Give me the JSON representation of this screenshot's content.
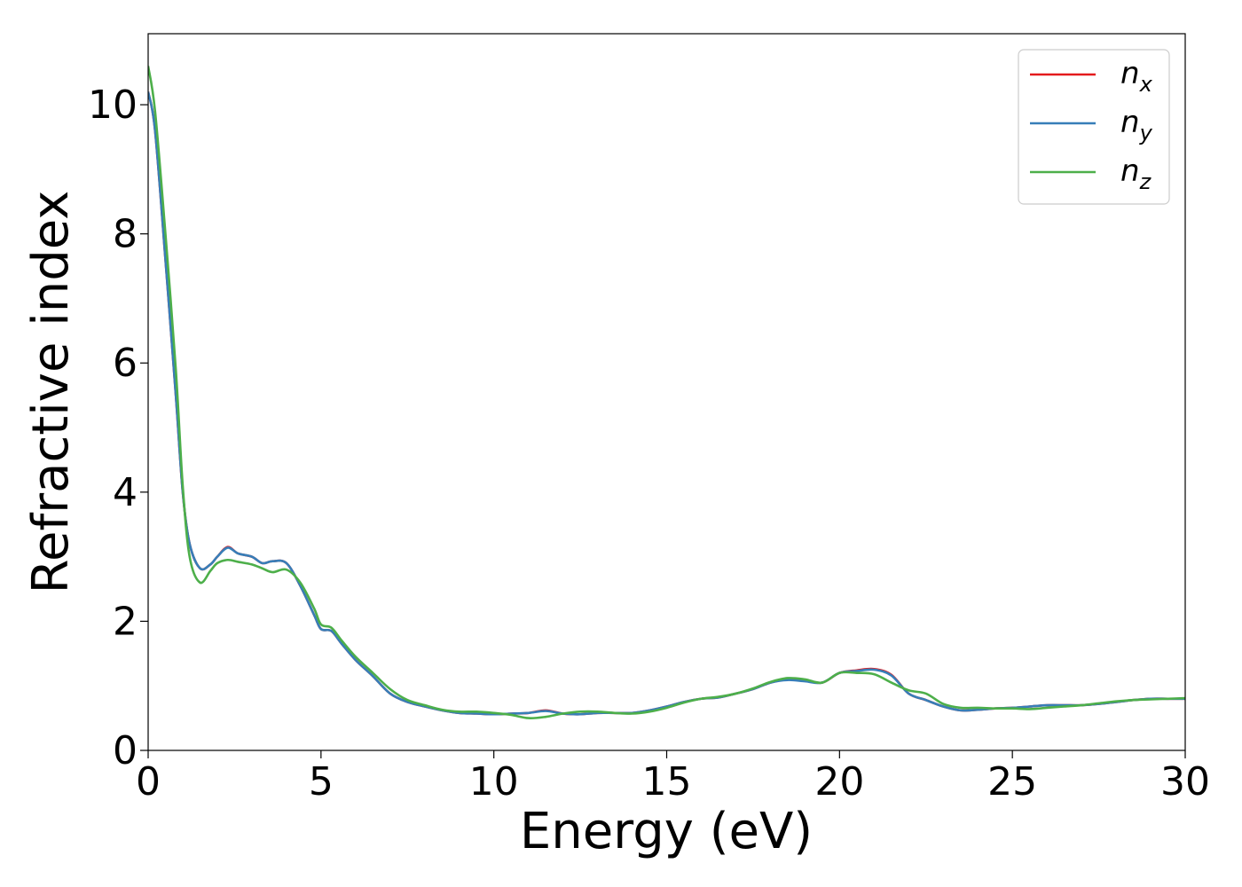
{
  "chart_data": {
    "type": "line",
    "xlabel": "Energy (eV)",
    "ylabel": "Refractive index",
    "xlim": [
      0,
      30
    ],
    "ylim": [
      0,
      11.1
    ],
    "xticks": [
      "0",
      "5",
      "10",
      "15",
      "20",
      "25",
      "30"
    ],
    "yticks": [
      "0",
      "2",
      "4",
      "6",
      "8",
      "10"
    ],
    "grid": false,
    "legend": "top-right",
    "series": [
      {
        "name": "n_x",
        "color": "#e41a1c",
        "x": [
          0,
          0.2,
          0.5,
          0.8,
          1.0,
          1.2,
          1.5,
          1.8,
          2.0,
          2.3,
          2.6,
          3.0,
          3.3,
          3.6,
          4.0,
          4.4,
          4.8,
          5.0,
          5.3,
          5.6,
          6.0,
          6.5,
          7.0,
          7.5,
          8.0,
          8.5,
          9.0,
          9.5,
          10.0,
          10.5,
          11.0,
          11.5,
          12.0,
          12.5,
          13.0,
          13.5,
          14.0,
          14.5,
          15.0,
          15.5,
          16.0,
          16.5,
          17.0,
          17.5,
          18.0,
          18.5,
          19.0,
          19.5,
          20.0,
          20.5,
          21.0,
          21.5,
          22.0,
          22.5,
          23.0,
          23.5,
          24.0,
          24.5,
          25.0,
          25.5,
          26.0,
          26.5,
          27.0,
          27.5,
          28.0,
          28.5,
          29.0,
          29.5,
          30.0
        ],
        "y": [
          10.2,
          9.6,
          7.6,
          5.5,
          4.0,
          3.2,
          2.82,
          2.88,
          3.0,
          3.15,
          3.05,
          3.0,
          2.9,
          2.93,
          2.9,
          2.55,
          2.1,
          1.88,
          1.85,
          1.65,
          1.4,
          1.15,
          0.88,
          0.75,
          0.68,
          0.62,
          0.58,
          0.57,
          0.56,
          0.57,
          0.58,
          0.62,
          0.57,
          0.56,
          0.58,
          0.58,
          0.58,
          0.62,
          0.68,
          0.75,
          0.8,
          0.82,
          0.88,
          0.95,
          1.05,
          1.1,
          1.08,
          1.05,
          1.2,
          1.24,
          1.26,
          1.17,
          0.88,
          0.78,
          0.68,
          0.62,
          0.63,
          0.65,
          0.66,
          0.68,
          0.7,
          0.7,
          0.7,
          0.72,
          0.75,
          0.78,
          0.8,
          0.8,
          0.8
        ]
      },
      {
        "name": "n_y",
        "color": "#377eb8",
        "x": [
          0,
          0.2,
          0.5,
          0.8,
          1.0,
          1.2,
          1.5,
          1.8,
          2.0,
          2.3,
          2.6,
          3.0,
          3.3,
          3.6,
          4.0,
          4.4,
          4.8,
          5.0,
          5.3,
          5.6,
          6.0,
          6.5,
          7.0,
          7.5,
          8.0,
          8.5,
          9.0,
          9.5,
          10.0,
          10.5,
          11.0,
          11.5,
          12.0,
          12.5,
          13.0,
          13.5,
          14.0,
          14.5,
          15.0,
          15.5,
          16.0,
          16.5,
          17.0,
          17.5,
          18.0,
          18.5,
          19.0,
          19.5,
          20.0,
          20.5,
          21.0,
          21.5,
          22.0,
          22.5,
          23.0,
          23.5,
          24.0,
          24.5,
          25.0,
          25.5,
          26.0,
          26.5,
          27.0,
          27.5,
          28.0,
          28.5,
          29.0,
          29.5,
          30.0
        ],
        "y": [
          10.2,
          9.6,
          7.6,
          5.5,
          4.0,
          3.2,
          2.82,
          2.88,
          3.0,
          3.14,
          3.05,
          3.0,
          2.9,
          2.93,
          2.9,
          2.55,
          2.1,
          1.88,
          1.85,
          1.65,
          1.4,
          1.15,
          0.88,
          0.75,
          0.68,
          0.62,
          0.58,
          0.57,
          0.56,
          0.57,
          0.58,
          0.61,
          0.57,
          0.56,
          0.58,
          0.58,
          0.58,
          0.62,
          0.68,
          0.75,
          0.8,
          0.82,
          0.88,
          0.95,
          1.05,
          1.09,
          1.07,
          1.05,
          1.2,
          1.23,
          1.25,
          1.16,
          0.88,
          0.78,
          0.68,
          0.62,
          0.63,
          0.65,
          0.66,
          0.68,
          0.7,
          0.7,
          0.7,
          0.72,
          0.75,
          0.78,
          0.8,
          0.8,
          0.8
        ]
      },
      {
        "name": "n_z",
        "color": "#4daf4a",
        "x": [
          0,
          0.2,
          0.5,
          0.8,
          1.0,
          1.2,
          1.5,
          1.8,
          2.0,
          2.3,
          2.6,
          3.0,
          3.3,
          3.6,
          4.0,
          4.4,
          4.8,
          5.0,
          5.3,
          5.6,
          6.0,
          6.5,
          7.0,
          7.5,
          8.0,
          8.5,
          9.0,
          9.5,
          10.0,
          10.5,
          11.0,
          11.5,
          12.0,
          12.5,
          13.0,
          13.5,
          14.0,
          14.5,
          15.0,
          15.5,
          16.0,
          16.5,
          17.0,
          17.5,
          18.0,
          18.5,
          19.0,
          19.5,
          20.0,
          20.5,
          21.0,
          21.5,
          22.0,
          22.5,
          23.0,
          23.5,
          24.0,
          24.5,
          25.0,
          25.5,
          26.0,
          26.5,
          27.0,
          27.5,
          28.0,
          28.5,
          29.0,
          29.5,
          30.0
        ],
        "y": [
          10.6,
          9.9,
          8.0,
          5.9,
          4.1,
          3.0,
          2.6,
          2.78,
          2.9,
          2.95,
          2.92,
          2.88,
          2.82,
          2.76,
          2.8,
          2.6,
          2.2,
          1.95,
          1.9,
          1.7,
          1.45,
          1.2,
          0.95,
          0.78,
          0.7,
          0.63,
          0.6,
          0.6,
          0.58,
          0.55,
          0.5,
          0.52,
          0.57,
          0.6,
          0.6,
          0.58,
          0.57,
          0.6,
          0.66,
          0.74,
          0.8,
          0.83,
          0.88,
          0.96,
          1.06,
          1.12,
          1.1,
          1.05,
          1.2,
          1.2,
          1.18,
          1.05,
          0.93,
          0.88,
          0.72,
          0.66,
          0.66,
          0.65,
          0.65,
          0.64,
          0.66,
          0.68,
          0.7,
          0.73,
          0.76,
          0.78,
          0.79,
          0.8,
          0.81
        ]
      }
    ]
  }
}
